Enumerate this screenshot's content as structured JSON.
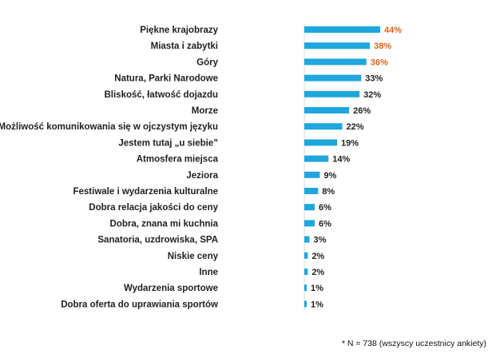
{
  "chart_data": {
    "type": "bar",
    "orientation": "horizontal",
    "categories": [
      "Piękne krajobrazy",
      "Miasta i zabytki",
      "Góry",
      "Natura, Parki Narodowe",
      "Bliskość, łatwość dojazdu",
      "Morze",
      "Możliwość komunikowania się w ojczystym języku",
      "Jestem tutaj „u siebie”",
      "Atmosfera miejsca",
      "Jeziora",
      "Festiwale i wydarzenia kulturalne",
      "Dobra relacja jakości do ceny",
      "Dobra, znana mi kuchnia",
      "Sanatoria, uzdrowiska, SPA",
      "Niskie ceny",
      "Inne",
      "Wydarzenia sportowe",
      "Dobra oferta do uprawiania sportów"
    ],
    "values": [
      44,
      38,
      36,
      33,
      32,
      26,
      22,
      19,
      14,
      9,
      8,
      6,
      6,
      3,
      2,
      2,
      1,
      1
    ],
    "value_labels": [
      "44%",
      "38%",
      "36%",
      "33%",
      "32%",
      "26%",
      "22%",
      "19%",
      "14%",
      "9%",
      "8%",
      "6%",
      "6%",
      "3%",
      "2%",
      "2%",
      "1%",
      "1%"
    ],
    "highlighted_count": 3,
    "bar_color": "#1ea6dd",
    "highlight_label_color": "#e2621b",
    "label_color": "#1f1f1f",
    "grid": false,
    "legend": "none",
    "xlim": [
      0,
      44
    ]
  },
  "footnote": "* N = 738  (wszyscy uczestnicy ankiety)"
}
